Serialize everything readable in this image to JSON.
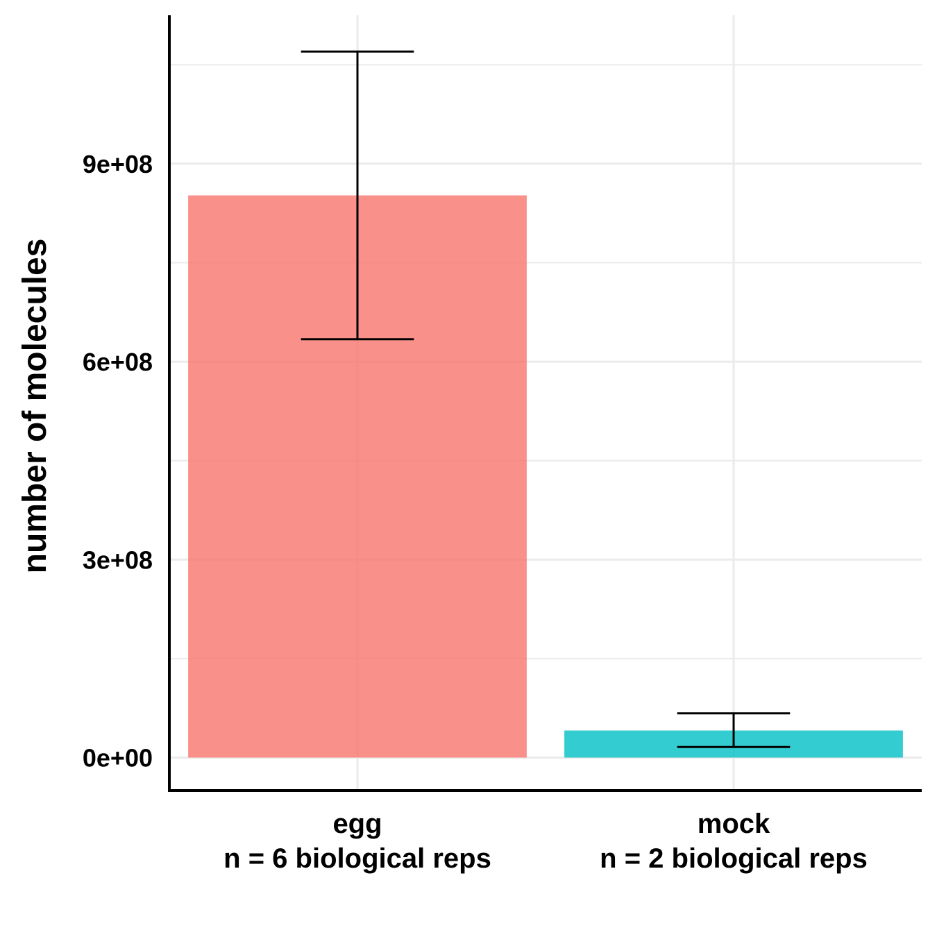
{
  "chart_data": {
    "type": "bar",
    "title": "",
    "xlabel": "",
    "ylabel": "number of molecules",
    "categories": [
      {
        "line1": "egg",
        "line2": "n = 6 biological reps"
      },
      {
        "line1": "mock",
        "line2": "n = 2 biological reps"
      }
    ],
    "values": [
      852000000,
      41000000
    ],
    "error_bars": [
      {
        "low": 634000000,
        "high": 1070000000
      },
      {
        "low": 16000000,
        "high": 67000000
      }
    ],
    "colors": [
      "#F8766D",
      "#00BFC4"
    ],
    "ylim": [
      -50000000,
      1125000000
    ],
    "yticks": [
      {
        "value": 0,
        "label": "0e+00"
      },
      {
        "value": 300000000,
        "label": "3e+08"
      },
      {
        "value": 600000000,
        "label": "6e+08"
      },
      {
        "value": 900000000,
        "label": "9e+08"
      }
    ],
    "grid": true,
    "legend": "none"
  }
}
